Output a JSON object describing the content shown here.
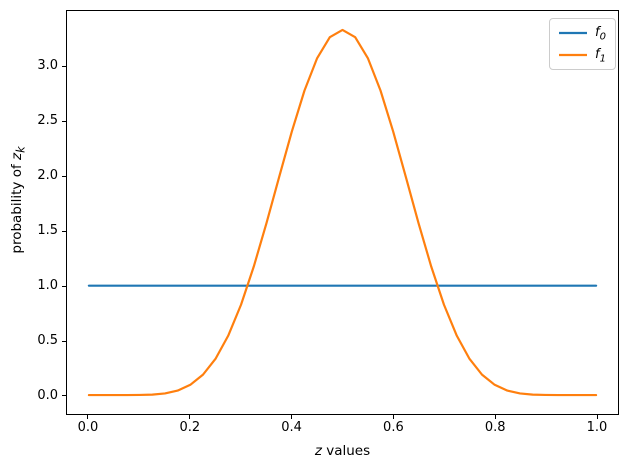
{
  "figure": {
    "background": "#ffffff",
    "text_color": "#000000",
    "spine_color": "#000000"
  },
  "labels": {
    "xlabel_var": "z",
    "xlabel_rest": "values",
    "ylabel_prefix": "probability of ",
    "ylabel_var": "z",
    "ylabel_sub": "k"
  },
  "chart_data": {
    "type": "line",
    "title": "",
    "xlabel": "z values",
    "ylabel": "probability of z_k",
    "grid": false,
    "xlim": [
      -0.0432,
      1.0432
    ],
    "ylim": [
      -0.173,
      3.511
    ],
    "x_ticks": {
      "values": [
        0,
        0.2,
        0.4,
        0.6,
        0.8,
        1.0
      ],
      "labels": [
        "0.0",
        "0.2",
        "0.4",
        "0.6",
        "0.8",
        "1.0"
      ]
    },
    "y_ticks": {
      "values": [
        0,
        0.5,
        1.0,
        1.5,
        2.0,
        2.5,
        3.0
      ],
      "labels": [
        "0.0",
        "0.5",
        "1.0",
        "1.5",
        "2.0",
        "2.5",
        "3.0"
      ]
    },
    "x": [
      0,
      0.025,
      0.05,
      0.075,
      0.1,
      0.125,
      0.15,
      0.175,
      0.2,
      0.225,
      0.25,
      0.275,
      0.3,
      0.325,
      0.35,
      0.375,
      0.4,
      0.425,
      0.45,
      0.475,
      0.5,
      0.525,
      0.55,
      0.575,
      0.6,
      0.625,
      0.65,
      0.675,
      0.7,
      0.725,
      0.75,
      0.775,
      0.8,
      0.825,
      0.85,
      0.875,
      0.9,
      0.925,
      0.95,
      0.975,
      1
    ],
    "series": [
      {
        "name": "f0",
        "color": "#1f77b4",
        "linewidth": 2.2,
        "values": [
          1,
          1,
          1,
          1,
          1,
          1,
          1,
          1,
          1,
          1,
          1,
          1,
          1,
          1,
          1,
          1,
          1,
          1,
          1,
          1,
          1,
          1,
          1,
          1,
          1,
          1,
          1,
          1,
          1,
          1,
          1,
          1,
          1,
          1,
          1,
          1,
          1,
          1,
          1,
          1,
          1
        ]
      },
      {
        "name": "f1",
        "color": "#ff7f0e",
        "linewidth": 2.2,
        "values": [
          0,
          0,
          0,
          0,
          0.001,
          0.004,
          0.015,
          0.041,
          0.094,
          0.187,
          0.334,
          0.546,
          0.827,
          1.174,
          1.57,
          1.992,
          2.408,
          2.783,
          3.08,
          3.272,
          3.338,
          3.272,
          3.08,
          2.783,
          2.408,
          1.992,
          1.57,
          1.174,
          0.827,
          0.546,
          0.334,
          0.187,
          0.094,
          0.041,
          0.015,
          0.004,
          0.001,
          0,
          0,
          0,
          0
        ]
      }
    ],
    "legend": {
      "position": "upper right",
      "entries": [
        {
          "base": "f",
          "sub": "0",
          "color": "#1f77b4"
        },
        {
          "base": "f",
          "sub": "1",
          "color": "#ff7f0e"
        }
      ]
    }
  }
}
